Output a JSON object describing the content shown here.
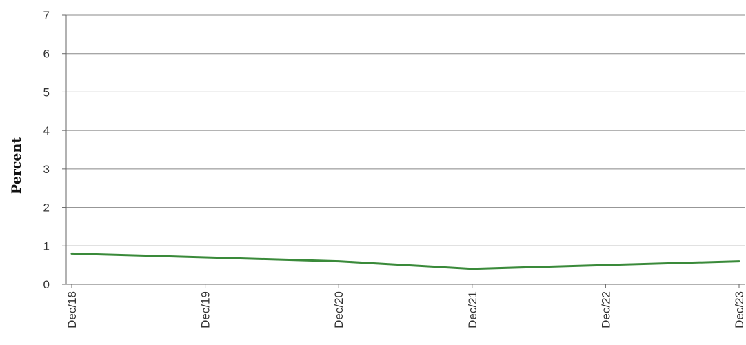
{
  "chart_data": {
    "type": "line",
    "title": "",
    "xlabel": "",
    "ylabel": "Percent",
    "categories": [
      "Dec/18",
      "Dec/19",
      "Dec/20",
      "Dec/21",
      "Dec/22",
      "Dec/23"
    ],
    "series": [
      {
        "color": "#3a8a3a",
        "values": [
          0.8,
          0.7,
          0.6,
          0.4,
          0.5,
          0.6
        ]
      }
    ],
    "ylim": [
      0,
      7
    ],
    "yticks": [
      "0",
      "1",
      "2",
      "3",
      "4",
      "5",
      "6",
      "7"
    ],
    "grid": true,
    "legend": "none",
    "gridColor": "#888888",
    "axisColor": "#666666"
  }
}
